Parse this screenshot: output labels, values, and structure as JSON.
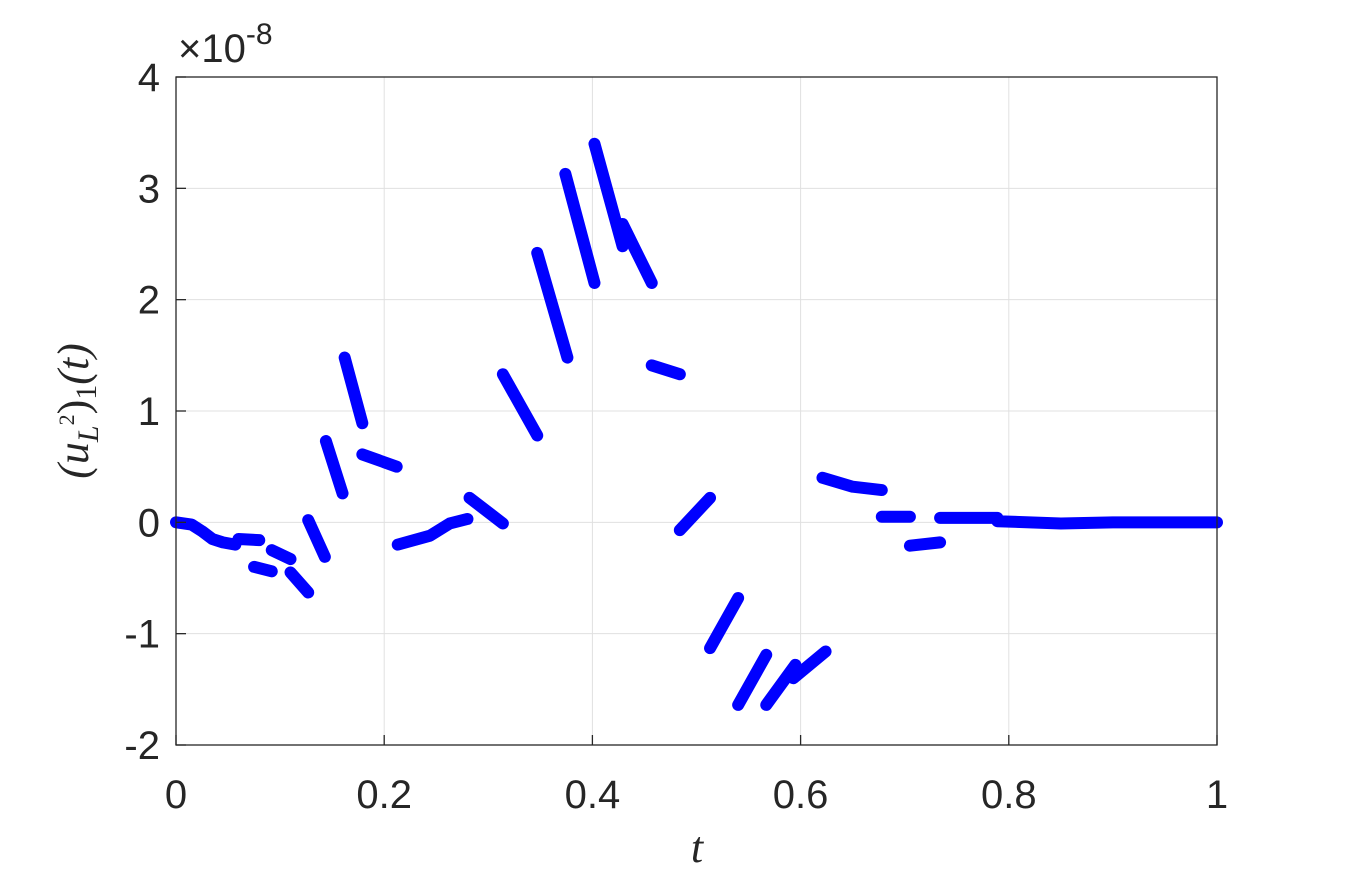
{
  "chart_data": {
    "type": "line",
    "xlabel": "t",
    "ylabel": [
      "(u",
      "L",
      "2",
      ")",
      "1",
      "(t)"
    ],
    "y_multiplier": {
      "base": "×10",
      "exponent": "-8"
    },
    "xlim": [
      0,
      1
    ],
    "xticks": [
      0,
      0.2,
      0.4,
      0.6,
      0.8,
      1
    ],
    "ylim": [
      -2,
      4
    ],
    "yticks": [
      -2,
      -1,
      0,
      1,
      2,
      3,
      4
    ],
    "grid": true,
    "series": [
      {
        "color": "#0000ff",
        "x": [
          0,
          0.015,
          0.025,
          0.035,
          0.045,
          0.057,
          null,
          0.06,
          0.08,
          null,
          0.075,
          0.092,
          null,
          0.092,
          0.11,
          null,
          0.11,
          0.127,
          null,
          0.127,
          0.143,
          null,
          0.144,
          0.16,
          null,
          0.162,
          0.179,
          null,
          0.179,
          0.212,
          null,
          0.213,
          0.244,
          0.263,
          0.28,
          null,
          0.282,
          0.314,
          null,
          0.314,
          0.347,
          null,
          0.347,
          0.376,
          null,
          0.374,
          0.402,
          null,
          0.402,
          0.429,
          null,
          0.429,
          0.457,
          null,
          0.457,
          0.484,
          null,
          0.484,
          0.513,
          null,
          0.513,
          0.54,
          null,
          0.54,
          0.567,
          null,
          0.567,
          0.595,
          null,
          0.593,
          0.624,
          null,
          0.621,
          0.65,
          0.678,
          null,
          0.678,
          0.705,
          null,
          0.705,
          0.734,
          null,
          0.734,
          0.789,
          null,
          0.789,
          0.85,
          0.9,
          1
        ],
        "values": [
          0,
          -0.02,
          -0.08,
          -0.15,
          -0.18,
          -0.2,
          null,
          -0.15,
          -0.16,
          null,
          -0.4,
          -0.44,
          null,
          -0.25,
          -0.33,
          null,
          -0.45,
          -0.63,
          null,
          0.02,
          -0.31,
          null,
          0.73,
          0.26,
          null,
          1.48,
          0.89,
          null,
          0.61,
          0.5,
          null,
          -0.2,
          -0.12,
          -0.01,
          0.03,
          null,
          0.22,
          -0.01,
          null,
          1.33,
          0.78,
          null,
          2.42,
          1.48,
          null,
          3.13,
          2.15,
          null,
          3.4,
          2.48,
          null,
          2.68,
          2.15,
          null,
          1.41,
          1.33,
          null,
          -0.07,
          0.22,
          null,
          -1.13,
          -0.68,
          null,
          -1.64,
          -1.19,
          null,
          -1.64,
          -1.28,
          null,
          -1.4,
          -1.16,
          null,
          0.4,
          0.32,
          0.29,
          null,
          0.05,
          0.05,
          null,
          -0.21,
          -0.18,
          null,
          0.04,
          0.04,
          null,
          0.01,
          -0.01,
          0,
          0
        ]
      }
    ]
  }
}
